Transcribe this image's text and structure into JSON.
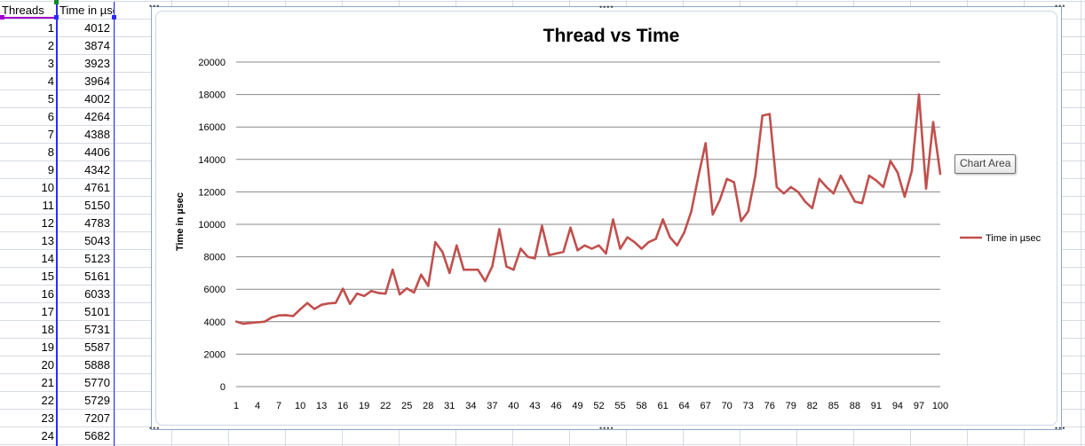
{
  "sheet": {
    "col_a_header": "Threads",
    "col_b_header": "Time in µsec",
    "rows": [
      [
        "1",
        "4012"
      ],
      [
        "2",
        "3874"
      ],
      [
        "3",
        "3923"
      ],
      [
        "4",
        "3964"
      ],
      [
        "5",
        "4002"
      ],
      [
        "6",
        "4264"
      ],
      [
        "7",
        "4388"
      ],
      [
        "8",
        "4406"
      ],
      [
        "9",
        "4342"
      ],
      [
        "10",
        "4761"
      ],
      [
        "11",
        "5150"
      ],
      [
        "12",
        "4783"
      ],
      [
        "13",
        "5043"
      ],
      [
        "14",
        "5123"
      ],
      [
        "15",
        "5161"
      ],
      [
        "16",
        "6033"
      ],
      [
        "17",
        "5101"
      ],
      [
        "18",
        "5731"
      ],
      [
        "19",
        "5587"
      ],
      [
        "20",
        "5888"
      ],
      [
        "21",
        "5770"
      ],
      [
        "22",
        "5729"
      ],
      [
        "23",
        "7207"
      ],
      [
        "24",
        "5682"
      ]
    ]
  },
  "tooltip": {
    "text": "Chart Area"
  },
  "colors": {
    "series": "#c0504d",
    "gridline": "#878787",
    "cell_grid": "#d6dbe3",
    "selection": "#2b2bff"
  },
  "chart_data": {
    "type": "line",
    "title": "Thread vs Time",
    "xlabel": "",
    "ylabel": "Time in µsec",
    "ylim": [
      0,
      20000
    ],
    "yticks": [
      0,
      2000,
      4000,
      6000,
      8000,
      10000,
      12000,
      14000,
      16000,
      18000,
      20000
    ],
    "xticks": [
      1,
      4,
      7,
      10,
      13,
      16,
      19,
      22,
      25,
      28,
      31,
      34,
      37,
      40,
      43,
      46,
      49,
      52,
      55,
      58,
      61,
      64,
      67,
      70,
      73,
      76,
      79,
      82,
      85,
      88,
      91,
      94,
      97,
      100
    ],
    "grid": true,
    "legend_position": "right",
    "x": [
      1,
      2,
      3,
      4,
      5,
      6,
      7,
      8,
      9,
      10,
      11,
      12,
      13,
      14,
      15,
      16,
      17,
      18,
      19,
      20,
      21,
      22,
      23,
      24,
      25,
      26,
      27,
      28,
      29,
      30,
      31,
      32,
      33,
      34,
      35,
      36,
      37,
      38,
      39,
      40,
      41,
      42,
      43,
      44,
      45,
      46,
      47,
      48,
      49,
      50,
      51,
      52,
      53,
      54,
      55,
      56,
      57,
      58,
      59,
      60,
      61,
      62,
      63,
      64,
      65,
      66,
      67,
      68,
      69,
      70,
      71,
      72,
      73,
      74,
      75,
      76,
      77,
      78,
      79,
      80,
      81,
      82,
      83,
      84,
      85,
      86,
      87,
      88,
      89,
      90,
      91,
      92,
      93,
      94,
      95,
      96,
      97,
      98,
      99,
      100
    ],
    "series": [
      {
        "name": "Time in µsec",
        "values": [
          4012,
          3874,
          3923,
          3964,
          4002,
          4264,
          4388,
          4406,
          4342,
          4761,
          5150,
          4783,
          5043,
          5123,
          5161,
          6033,
          5101,
          5731,
          5587,
          5888,
          5770,
          5729,
          7207,
          5682,
          6050,
          5800,
          6900,
          6200,
          8900,
          8300,
          7000,
          8700,
          7200,
          7200,
          7200,
          6500,
          7400,
          9700,
          7400,
          7200,
          8500,
          8000,
          7900,
          9900,
          8100,
          8200,
          8300,
          9800,
          8400,
          8700,
          8500,
          8700,
          8200,
          10300,
          8500,
          9200,
          8900,
          8500,
          8900,
          9100,
          10300,
          9200,
          8700,
          9500,
          10800,
          13000,
          15000,
          10600,
          11500,
          12800,
          12600,
          10200,
          10800,
          13000,
          16700,
          16800,
          12300,
          11900,
          12300,
          12000,
          11400,
          11000,
          12800,
          12300,
          11900,
          13000,
          12200,
          11400,
          11300,
          13000,
          12700,
          12300,
          13900,
          13200,
          11700,
          13300,
          18000,
          12200,
          16300,
          13100
        ]
      }
    ]
  }
}
